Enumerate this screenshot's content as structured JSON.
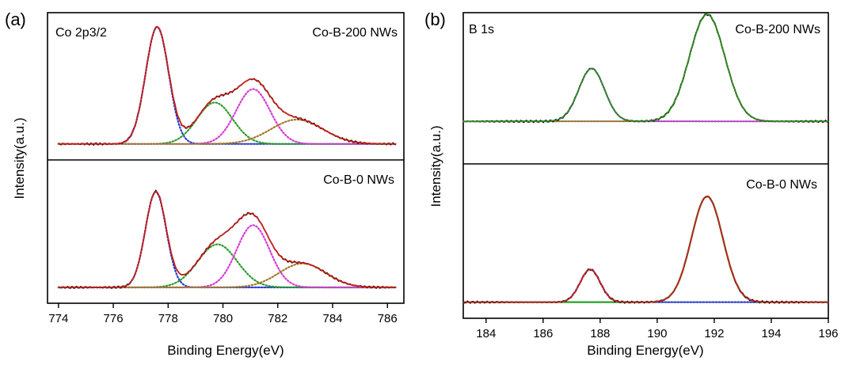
{
  "chart_data": [
    {
      "type": "line",
      "panel_label": "(a)",
      "xlabel": "Binding Energy(eV)",
      "ylabel": "Intensity(a.u.)",
      "xlim": [
        773.6,
        786.6
      ],
      "x_ticks": [
        774,
        776,
        778,
        780,
        782,
        784,
        786
      ],
      "legend": "none",
      "grid": false,
      "subplots": [
        {
          "annotations": [
            "Co 2p3/2",
            "Co-B-200 NWs"
          ],
          "baseline": 0.04,
          "x_range": [
            774.0,
            786.3
          ],
          "peaks": [
            {
              "center": 777.6,
              "height": 0.96,
              "width": 0.42,
              "color": "#2b3fd1",
              "style": "dotted"
            },
            {
              "center": 779.7,
              "height": 0.34,
              "width": 0.65,
              "color": "#2a9d2a",
              "style": "dotted"
            },
            {
              "center": 781.1,
              "height": 0.45,
              "width": 0.62,
              "color": "#d63ad6",
              "style": "dotted"
            },
            {
              "center": 782.7,
              "height": 0.2,
              "width": 0.95,
              "color": "#a3782c",
              "style": "dotted"
            }
          ],
          "measured_color": "#000000",
          "fit_color": "#e8201d",
          "envelope_color": "#8a3fb5"
        },
        {
          "annotations": [
            "Co-B-0 NWs"
          ],
          "baseline": 0.04,
          "x_range": [
            774.0,
            786.3
          ],
          "peaks": [
            {
              "center": 777.55,
              "height": 0.8,
              "width": 0.38,
              "color": "#2b3fd1",
              "style": "dotted"
            },
            {
              "center": 779.8,
              "height": 0.36,
              "width": 0.72,
              "color": "#2a9d2a",
              "style": "dotted"
            },
            {
              "center": 781.1,
              "height": 0.52,
              "width": 0.6,
              "color": "#d63ad6",
              "style": "dotted"
            },
            {
              "center": 782.9,
              "height": 0.2,
              "width": 0.85,
              "color": "#a3782c",
              "style": "dotted"
            }
          ],
          "measured_color": "#000000",
          "fit_color": "#e8201d",
          "envelope_color": "#8a3fb5"
        }
      ]
    },
    {
      "type": "line",
      "panel_label": "(b)",
      "xlabel": "Binding Energy(eV)",
      "ylabel": "Intensity(a.u.)",
      "xlim": [
        183.2,
        196.0
      ],
      "x_ticks": [
        184,
        186,
        188,
        190,
        192,
        194,
        196
      ],
      "legend": "none",
      "grid": false,
      "subplots": [
        {
          "annotations": [
            "B 1s",
            "Co-B-200 NWs"
          ],
          "baseline": 0.25,
          "x_range": [
            183.2,
            196.0
          ],
          "peaks": [
            {
              "center": 187.7,
              "height": 0.42,
              "width": 0.45,
              "color": "#c13fc1",
              "style": "dotted"
            },
            {
              "center": 191.75,
              "height": 0.85,
              "width": 0.62,
              "color": "#a3782c",
              "style": "dotted"
            }
          ],
          "measured_color": "#000000",
          "fit_color": "#2a9d2a",
          "envelope_color": "#2a9d2a"
        },
        {
          "annotations": [
            "Co-B-0 NWs"
          ],
          "baseline": 0.04,
          "x_range": [
            183.2,
            196.0
          ],
          "peaks": [
            {
              "center": 187.65,
              "height": 0.26,
              "width": 0.35,
              "color": "#2b3fd1",
              "style": "dotted"
            },
            {
              "center": 191.75,
              "height": 0.84,
              "width": 0.55,
              "color": "#2a9d2a",
              "style": "solid"
            }
          ],
          "measured_color": "#000000",
          "fit_color": "#e8201d",
          "envelope_color": "#2a9d2a"
        }
      ]
    }
  ]
}
